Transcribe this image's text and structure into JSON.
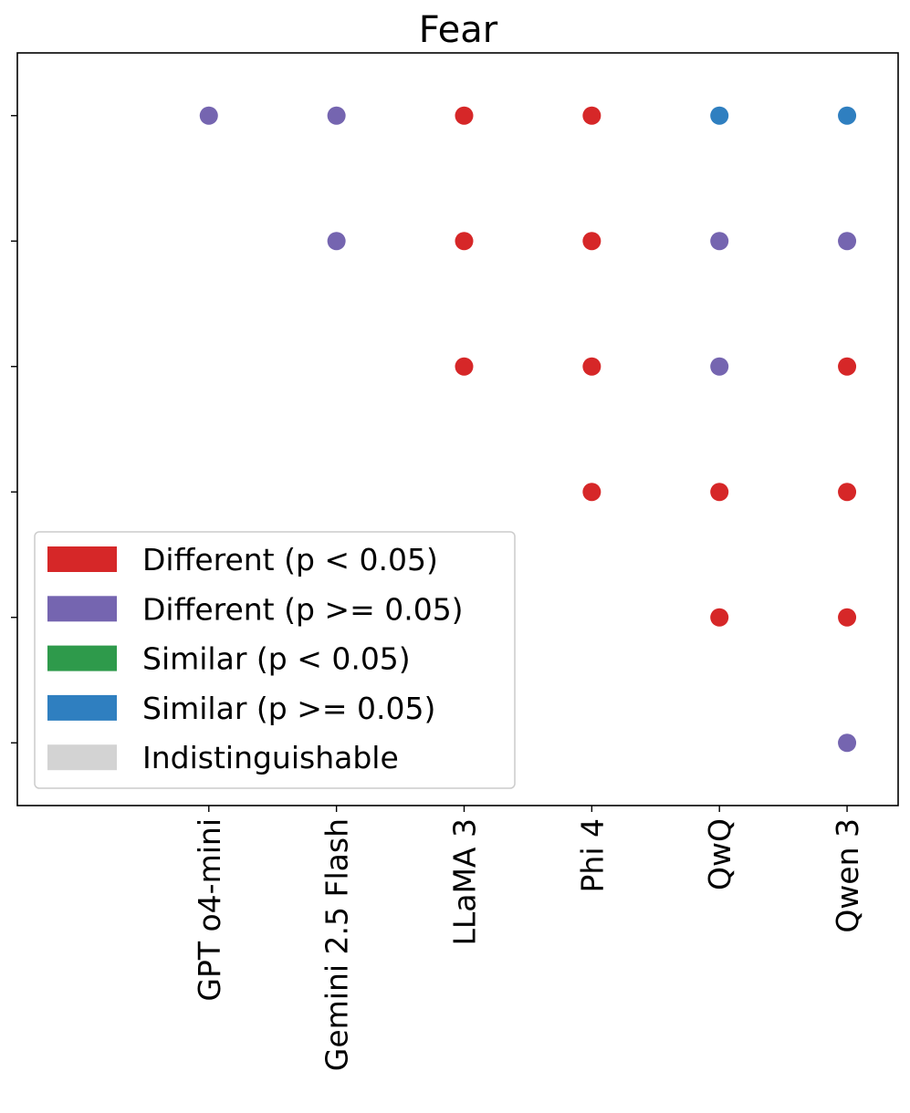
{
  "chart_data": {
    "type": "scatter",
    "title": "Fear",
    "xlabel": "",
    "ylabel": "",
    "categories": [
      "GPT o4-mini",
      "Gemini 2.5 Flash",
      "LLaMA 3",
      "Phi 4",
      "QwQ",
      "Qwen 3"
    ],
    "y_ticks": [
      0,
      1,
      2,
      3,
      4,
      5
    ],
    "y_tick_labels": [
      "",
      "",
      "",
      "",
      "",
      ""
    ],
    "xlim": [
      -1.5,
      5.4
    ],
    "ylim": [
      5.5,
      -0.5
    ],
    "grid": false,
    "legend_position": "lower-left",
    "legend": [
      {
        "key": "diff_sig",
        "label": "Different (p < 0.05)",
        "color": "#d62728"
      },
      {
        "key": "diff_ns",
        "label": "Different (p >= 0.05)",
        "color": "#7565b0"
      },
      {
        "key": "sim_sig",
        "label": "Similar (p < 0.05)",
        "color": "#2e9a4b"
      },
      {
        "key": "sim_ns",
        "label": "Similar (p >= 0.05)",
        "color": "#2f7fc0"
      },
      {
        "key": "indist",
        "label": "Indistinguishable",
        "color": "#d3d3d3"
      }
    ],
    "points": [
      {
        "x": "GPT o4-mini",
        "y": 0,
        "category": "diff_ns"
      },
      {
        "x": "Gemini 2.5 Flash",
        "y": 0,
        "category": "diff_ns"
      },
      {
        "x": "LLaMA 3",
        "y": 0,
        "category": "diff_sig"
      },
      {
        "x": "Phi 4",
        "y": 0,
        "category": "diff_sig"
      },
      {
        "x": "QwQ",
        "y": 0,
        "category": "sim_ns"
      },
      {
        "x": "Qwen 3",
        "y": 0,
        "category": "sim_ns"
      },
      {
        "x": "Gemini 2.5 Flash",
        "y": 1,
        "category": "diff_ns"
      },
      {
        "x": "LLaMA 3",
        "y": 1,
        "category": "diff_sig"
      },
      {
        "x": "Phi 4",
        "y": 1,
        "category": "diff_sig"
      },
      {
        "x": "QwQ",
        "y": 1,
        "category": "diff_ns"
      },
      {
        "x": "Qwen 3",
        "y": 1,
        "category": "diff_ns"
      },
      {
        "x": "LLaMA 3",
        "y": 2,
        "category": "diff_sig"
      },
      {
        "x": "Phi 4",
        "y": 2,
        "category": "diff_sig"
      },
      {
        "x": "QwQ",
        "y": 2,
        "category": "diff_ns"
      },
      {
        "x": "Qwen 3",
        "y": 2,
        "category": "diff_sig"
      },
      {
        "x": "Phi 4",
        "y": 3,
        "category": "diff_sig"
      },
      {
        "x": "QwQ",
        "y": 3,
        "category": "diff_sig"
      },
      {
        "x": "Qwen 3",
        "y": 3,
        "category": "diff_sig"
      },
      {
        "x": "QwQ",
        "y": 4,
        "category": "diff_sig"
      },
      {
        "x": "Qwen 3",
        "y": 4,
        "category": "diff_sig"
      },
      {
        "x": "Qwen 3",
        "y": 5,
        "category": "diff_ns"
      }
    ]
  }
}
